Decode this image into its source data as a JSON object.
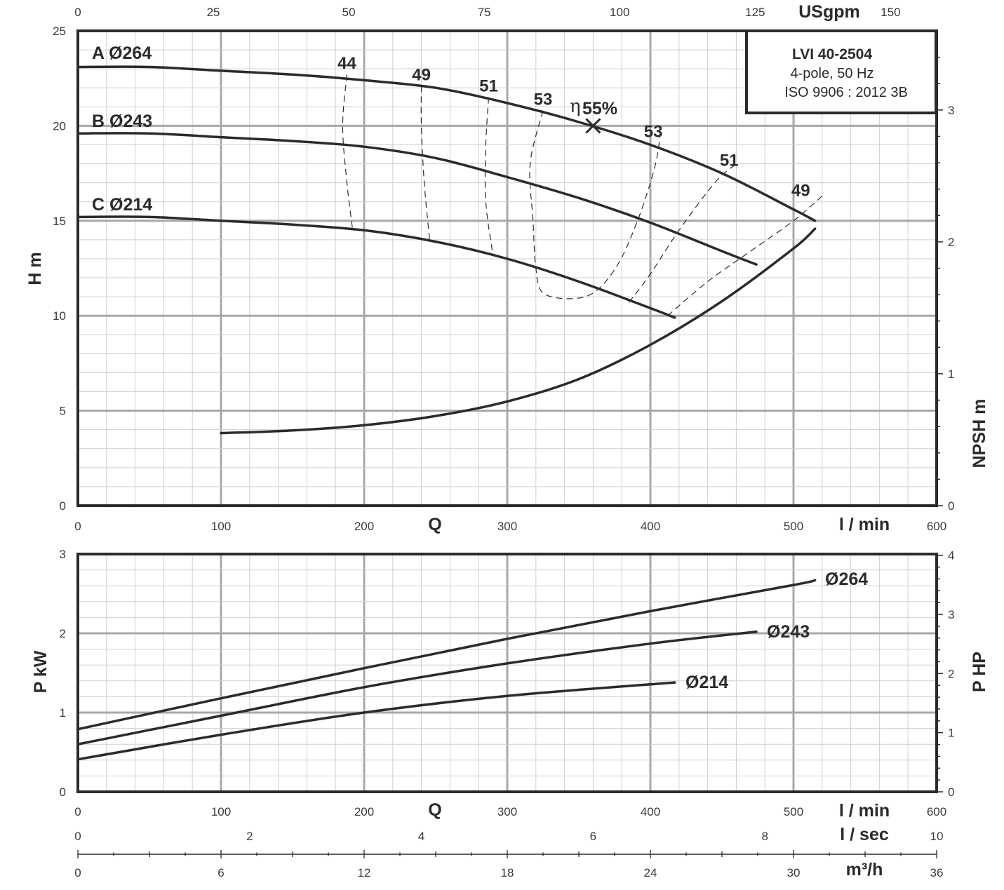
{
  "chart_data": [
    {
      "type": "line",
      "title": "LVI 40-2504",
      "subtitle": [
        "4-pole, 50 Hz",
        "ISO 9906 : 2012 3B"
      ],
      "xlabel": "l / min",
      "xlabel_letter": "Q",
      "ylabel": "H m",
      "y2label": "NPSH m",
      "top_axis_label": "USgpm",
      "xlim": [
        0,
        600
      ],
      "ylim": [
        0,
        25
      ],
      "y2lim": [
        0,
        3.6
      ],
      "top_lim": [
        0,
        158.5
      ],
      "x_ticks": [
        "0",
        "100",
        "200",
        "300",
        "400",
        "500",
        "600"
      ],
      "y_ticks": [
        "0",
        "5",
        "10",
        "15",
        "20",
        "25"
      ],
      "y2_ticks": [
        "0",
        "1",
        "2",
        "3"
      ],
      "top_ticks": [
        "0",
        "25",
        "50",
        "75",
        "100",
        "125",
        "150"
      ],
      "series": [
        {
          "name": "A Ø264",
          "x": [
            0,
            50,
            100,
            150,
            200,
            250,
            300,
            350,
            400,
            450,
            500,
            515
          ],
          "y": [
            23.1,
            23.1,
            22.9,
            22.7,
            22.4,
            22.0,
            21.2,
            20.2,
            19.0,
            17.5,
            15.6,
            15.0
          ]
        },
        {
          "name": "B Ø243",
          "x": [
            0,
            50,
            100,
            150,
            200,
            250,
            300,
            350,
            400,
            450,
            474
          ],
          "y": [
            19.6,
            19.6,
            19.4,
            19.2,
            18.9,
            18.3,
            17.3,
            16.2,
            14.9,
            13.4,
            12.7
          ]
        },
        {
          "name": "C Ø214",
          "x": [
            0,
            50,
            100,
            150,
            200,
            250,
            300,
            350,
            400,
            417
          ],
          "y": [
            15.2,
            15.2,
            15.0,
            14.8,
            14.5,
            13.9,
            13.0,
            11.8,
            10.4,
            9.9
          ]
        },
        {
          "name": "NPSH",
          "axis": "y2",
          "x": [
            100,
            150,
            200,
            250,
            300,
            350,
            400,
            450,
            500,
            515
          ],
          "y": [
            0.55,
            0.57,
            0.61,
            0.68,
            0.79,
            0.96,
            1.22,
            1.55,
            1.95,
            2.1
          ]
        }
      ],
      "efficiency_contours": [
        {
          "label": "44",
          "x": [
            188,
            185,
            188,
            192
          ],
          "y": [
            22.7,
            20.0,
            17.0,
            14.5
          ]
        },
        {
          "label": "49",
          "x": [
            240,
            240,
            242,
            246
          ],
          "y": [
            22.1,
            20.0,
            17.0,
            13.8
          ]
        },
        {
          "label": "51",
          "x": [
            287,
            285,
            285,
            290
          ],
          "y": [
            21.5,
            19.0,
            16.0,
            13.2
          ]
        },
        {
          "label": "53",
          "x": [
            325,
            316,
            318,
            320,
            325,
            345,
            362,
            378,
            391,
            400,
            405,
            407
          ],
          "y": [
            20.8,
            18.0,
            15.0,
            12.5,
            11.2,
            10.9,
            11.3,
            12.8,
            15.0,
            17.0,
            18.5,
            19.8
          ]
        },
        {
          "label": "51",
          "x": [
            385,
            400,
            420,
            445,
            460
          ],
          "y": [
            10.7,
            12.2,
            14.5,
            17.0,
            18.0
          ]
        },
        {
          "label": "49",
          "x": [
            412,
            440,
            470,
            500,
            520
          ],
          "y": [
            10.0,
            11.8,
            13.4,
            15.0,
            16.3
          ]
        }
      ],
      "efficiency_labels": [
        {
          "text": "44",
          "x": 188,
          "y": 23.0
        },
        {
          "text": "49",
          "x": 240,
          "y": 22.4
        },
        {
          "text": "51",
          "x": 287,
          "y": 21.8
        },
        {
          "text": "53",
          "x": 325,
          "y": 21.1
        },
        {
          "text": "53",
          "x": 402,
          "y": 19.4
        },
        {
          "text": "51",
          "x": 455,
          "y": 17.9
        },
        {
          "text": "49",
          "x": 505,
          "y": 16.3
        }
      ],
      "bep": {
        "x": 360,
        "y": 20.0,
        "label": "55%",
        "symbol": "η"
      }
    },
    {
      "type": "line",
      "xlabel": "l / min",
      "xlabel_letter": "Q",
      "ylabel": "P kW",
      "y2label": "P HP",
      "xlim": [
        0,
        600
      ],
      "ylim": [
        0,
        3
      ],
      "y2lim": [
        0,
        4.02
      ],
      "x_ticks": [
        "0",
        "100",
        "200",
        "300",
        "400",
        "500",
        "600"
      ],
      "y_ticks": [
        "0",
        "1",
        "2",
        "3"
      ],
      "y2_ticks": [
        "0",
        "1",
        "2",
        "3",
        "4"
      ],
      "series": [
        {
          "name": "Ø264",
          "x": [
            0,
            100,
            200,
            300,
            400,
            500,
            515
          ],
          "y": [
            0.79,
            1.18,
            1.56,
            1.93,
            2.28,
            2.61,
            2.67
          ]
        },
        {
          "name": "Ø243",
          "x": [
            0,
            100,
            200,
            300,
            400,
            474
          ],
          "y": [
            0.6,
            0.96,
            1.32,
            1.62,
            1.87,
            2.02
          ]
        },
        {
          "name": "Ø214",
          "x": [
            0,
            100,
            200,
            300,
            417
          ],
          "y": [
            0.41,
            0.72,
            1.0,
            1.21,
            1.38
          ]
        }
      ],
      "secondary_axes": [
        {
          "label": "l / sec",
          "lim": [
            0,
            10
          ],
          "ticks": [
            "0",
            "2",
            "4",
            "6",
            "8",
            "10"
          ]
        },
        {
          "label": "m³/h",
          "lim": [
            0,
            36
          ],
          "ticks": [
            "0",
            "6",
            "12",
            "18",
            "24",
            "30",
            "36"
          ]
        }
      ]
    }
  ],
  "colors": {
    "grid_major": "#a8a8a8",
    "grid_minor": "#cfcfcf",
    "curve": "#2b2b2b",
    "frame": "#2b2b2b"
  }
}
